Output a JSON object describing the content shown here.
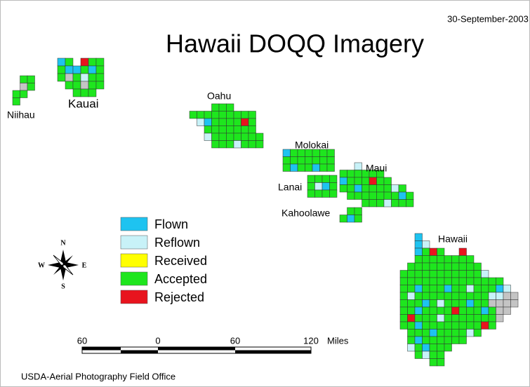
{
  "header": {
    "date": "30-September-2003",
    "title": "Hawaii DOQQ Imagery"
  },
  "islands": [
    {
      "label": "Niihau"
    },
    {
      "label": "Kauai"
    },
    {
      "label": "Oahu"
    },
    {
      "label": "Molokai"
    },
    {
      "label": "Lanai"
    },
    {
      "label": "Maui"
    },
    {
      "label": "Kahoolawe"
    },
    {
      "label": "Hawaii"
    }
  ],
  "legend": [
    {
      "label": "Flown",
      "color": "#1ec3f0"
    },
    {
      "label": "Reflown",
      "color": "#c8f2f8"
    },
    {
      "label": "Received",
      "color": "#ffff00"
    },
    {
      "label": "Accepted",
      "color": "#1ee61e"
    },
    {
      "label": "Rejected",
      "color": "#e8141e"
    }
  ],
  "compass": {
    "n": "N",
    "s": "S",
    "e": "E",
    "w": "W"
  },
  "scale": {
    "labels": [
      "60",
      "0",
      "60",
      "120"
    ],
    "unit": "Miles"
  },
  "footer": "USDA-Aerial Photography Field Office"
}
